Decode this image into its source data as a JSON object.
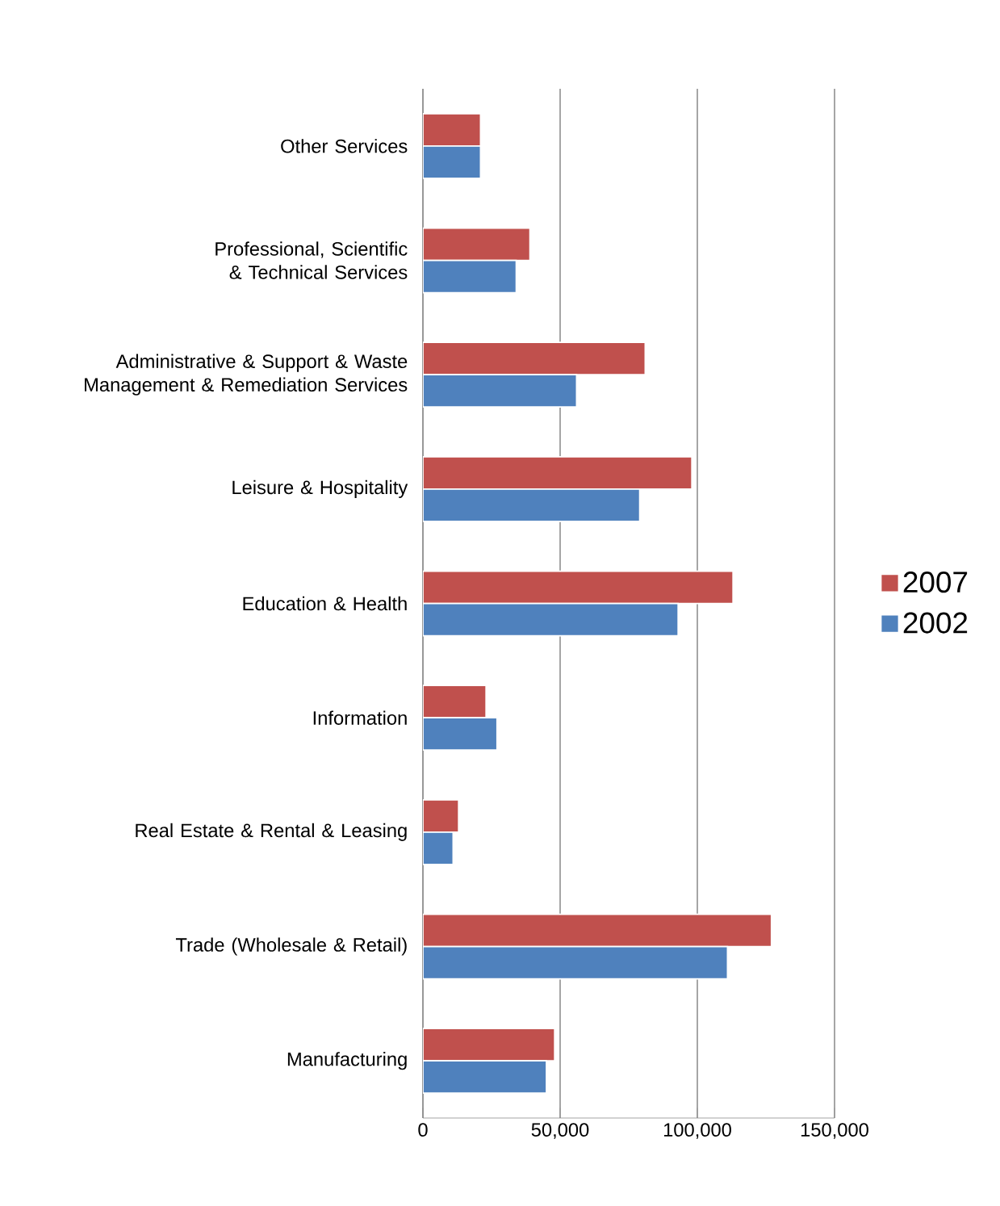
{
  "chart_data": {
    "type": "bar",
    "orientation": "horizontal",
    "categories": [
      "Other Services",
      "Professional, Scientific & Technical Services",
      "Administrative & Support & Waste Management & Remediation Services",
      "Leisure & Hospitality",
      "Education & Health",
      "Information",
      "Real Estate & Rental & Leasing",
      "Trade (Wholesale & Retail)",
      "Manufacturing"
    ],
    "series": [
      {
        "name": "2007",
        "color": "#c0504d",
        "values": [
          21000,
          39000,
          81000,
          98000,
          113000,
          23000,
          13000,
          127000,
          48000
        ]
      },
      {
        "name": "2002",
        "color": "#4f81bd",
        "values": [
          21000,
          34000,
          56000,
          79000,
          93000,
          27000,
          11000,
          111000,
          45000
        ]
      }
    ],
    "xlim": [
      0,
      150000
    ],
    "xticks": [
      0,
      {
        "value": 50000,
        "label": "50,000"
      },
      {
        "value": 100000,
        "label": "100,000"
      },
      {
        "value": 150000,
        "label": "150,000"
      }
    ],
    "grid": "x",
    "legend": "right"
  }
}
